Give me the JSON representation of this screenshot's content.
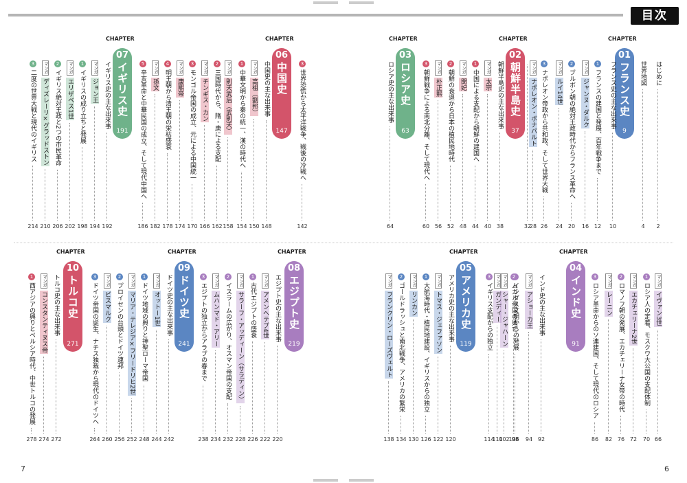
{
  "header": {
    "title": "目次"
  },
  "pages": {
    "left": "7",
    "right": "6"
  },
  "chapter_label": "CHAPTER",
  "chapters": [
    {
      "id": "01",
      "title": "フランス史",
      "page": "9",
      "color": "#5b86c2",
      "items": [
        {
          "kind": "plain",
          "text": "はじめに",
          "page": "2"
        },
        {
          "kind": "plain",
          "text": "世界地図",
          "page": "4"
        },
        {
          "kind": "plain",
          "text": "フランス史の主な出来事",
          "page": "10"
        },
        {
          "kind": "sec",
          "n": "1",
          "text": "フランスの建国と発展、百年戦争まで",
          "page": "12"
        },
        {
          "kind": "manga",
          "tag": "マンガ",
          "text": "ジャンヌ・ダルク",
          "page": "16"
        },
        {
          "kind": "sec",
          "n": "2",
          "text": "ブルボン朝の絶対王政時代からフランス革命へ",
          "page": "20"
        },
        {
          "kind": "manga",
          "tag": "マンガ",
          "text": "ルイ14世",
          "page": "24"
        },
        {
          "kind": "sec",
          "n": "3",
          "text": "ナポレオン帝政から共和政、そして世界大戦",
          "page": "26"
        },
        {
          "kind": "manga",
          "tag": "マンガ",
          "text": "ナポレオン・ボナパルト",
          "page": "28"
        },
        {
          "kind": "plain",
          "text": " ",
          "page": "32"
        }
      ]
    },
    {
      "id": "02",
      "title": "朝鮮半島史",
      "page": "37",
      "color": "#d3546a",
      "items": [
        {
          "kind": "plain",
          "text": "朝鮮半島史の主な出来事",
          "page": "38"
        },
        {
          "kind": "manga",
          "tag": "マンガ",
          "text": "太宗",
          "page": "40"
        },
        {
          "kind": "sec",
          "n": "1",
          "text": "中国による支配から朝鮮の建国へ",
          "page": "44"
        },
        {
          "kind": "manga",
          "tag": "マンガ",
          "text": "閔妃",
          "page": "48"
        },
        {
          "kind": "sec",
          "n": "2",
          "text": "朝鮮の衰退から日本の植民地時代",
          "page": "52"
        },
        {
          "kind": "manga",
          "tag": "マンガ",
          "text": "朴正熙",
          "page": "56"
        },
        {
          "kind": "sec",
          "n": "3",
          "text": "朝鮮戦争による南北分離、そして現代へ",
          "page": "60"
        }
      ]
    },
    {
      "id": "03",
      "title": "ロシア史",
      "page": "63",
      "color": "#6fb28a",
      "items": [
        {
          "kind": "plain",
          "text": "ロシア史の主な出来事",
          "page": "64"
        }
      ]
    },
    {
      "id": "04",
      "title": "インド史",
      "page": "91",
      "color": "#a87dbf",
      "items": [
        {
          "kind": "manga",
          "tag": "マンガ",
          "text": "イヴァン3世",
          "page": "66"
        },
        {
          "kind": "sec",
          "n": "1",
          "text": "ロシア人の定着、モスクワ大公国の支配体制",
          "page": "70"
        },
        {
          "kind": "manga",
          "tag": "マンガ",
          "text": "エカチェリーナ2世",
          "page": "72"
        },
        {
          "kind": "sec",
          "n": "2",
          "text": "ロマノフ朝の発展、エカチェリーナ女帝の時代",
          "page": "76"
        },
        {
          "kind": "manga",
          "tag": "マンガ",
          "text": "レーニン",
          "page": "82"
        },
        {
          "kind": "sec",
          "n": "3",
          "text": "ロシア革命からのソ連建国、そして現代のロシア",
          "page": "86"
        },
        {
          "kind": "plain",
          "text": "インド史の主な出来事",
          "page": "92"
        },
        {
          "kind": "manga",
          "tag": "マンガ",
          "text": "アショーカ王",
          "page": "94"
        },
        {
          "kind": "sec",
          "n": "1",
          "text": "インダス文明からの発展",
          "page": "98"
        },
        {
          "kind": "manga",
          "tag": "マンガ",
          "text": "シャー・ジャハーン",
          "page": "102"
        },
        {
          "kind": "sec",
          "n": "2",
          "text": "ムガル帝国の興亡",
          "page": "106"
        },
        {
          "kind": "manga",
          "tag": "マンガ",
          "text": "ガンディー",
          "page": "110"
        },
        {
          "kind": "sec",
          "n": "3",
          "text": "イギリス支配からの独立",
          "page": "114"
        }
      ]
    },
    {
      "id": "05",
      "title": "アメリカ史",
      "page": "119",
      "color": "#5b86c2",
      "items": [
        {
          "kind": "plain",
          "text": "アメリカ史の主な出来事",
          "page": "120"
        },
        {
          "kind": "manga",
          "tag": "マンガ",
          "text": "トマス・ジェファソン",
          "page": "122"
        },
        {
          "kind": "sec",
          "n": "1",
          "text": "大航海時代・植民地建設、イギリスからの独立",
          "page": "126"
        },
        {
          "kind": "manga",
          "tag": "マンガ",
          "text": "リンカン",
          "page": "130"
        },
        {
          "kind": "sec",
          "n": "2",
          "text": "ゴールドラッシュと南北戦争、アメリカの繁栄",
          "page": "134"
        },
        {
          "kind": "manga",
          "tag": "マンガ",
          "text": "フランクリン・ローズヴェルト",
          "page": "138"
        }
      ]
    },
    {
      "id": "06",
      "title": "中国史",
      "page": "147",
      "color": "#d3546a",
      "items": [
        {
          "kind": "sec",
          "n": "3",
          "text": "世界恐慌から太平洋戦争、戦後の冷戦へ",
          "page": "142"
        },
        {
          "kind": "plain",
          "text": "中国史の主な出来事",
          "page": "148"
        },
        {
          "kind": "manga",
          "tag": "マンガ",
          "text": "高祖（劉邦）",
          "page": "150"
        },
        {
          "kind": "sec",
          "n": "1",
          "text": "中華文明から秦の統一、漢の時代へ",
          "page": "154"
        },
        {
          "kind": "manga",
          "tag": "マンガ",
          "text": "則天武后（武則天）",
          "page": "158"
        },
        {
          "kind": "sec",
          "n": "2",
          "text": "三国時代から、隋・唐による支配",
          "page": "162"
        },
        {
          "kind": "manga",
          "tag": "マンガ",
          "text": "チンギス・カン",
          "page": "166"
        },
        {
          "kind": "sec",
          "n": "3",
          "text": "モンゴル帝国の成立、元による中国統一",
          "page": "170"
        },
        {
          "kind": "manga",
          "tag": "マンガ",
          "text": "康熙帝",
          "page": "174"
        },
        {
          "kind": "sec",
          "n": "4",
          "text": "明王朝から清王朝の栄枯盛衰",
          "page": "178"
        },
        {
          "kind": "manga",
          "tag": "マンガ",
          "text": "孫文",
          "page": "182"
        },
        {
          "kind": "sec",
          "n": "5",
          "text": "辛亥革命と中華民国の成立、そして現代中国へ",
          "page": "186"
        }
      ]
    },
    {
      "id": "07",
      "title": "イギリス史",
      "page": "191",
      "color": "#6fb28a",
      "items": [
        {
          "kind": "plain",
          "text": "イギリス史の主な出来事",
          "page": "192"
        },
        {
          "kind": "manga",
          "tag": "マンガ",
          "text": "ジョン王",
          "page": "194"
        },
        {
          "kind": "sec",
          "n": "1",
          "text": "イギリスの成り立ちと発展",
          "page": "198"
        },
        {
          "kind": "manga",
          "tag": "マンガ",
          "text": "エリザベス1世",
          "page": "202"
        },
        {
          "kind": "sec",
          "n": "2",
          "text": "イギリス絶対王政と2つの市民革命",
          "page": "206"
        },
        {
          "kind": "manga",
          "tag": "マンガ",
          "text": "ディズレーリ×グラッドストン",
          "page": "210"
        },
        {
          "kind": "sec",
          "n": "3",
          "text": "二度の世界大戦と現代のイギリス",
          "page": "214"
        }
      ]
    },
    {
      "id": "08",
      "title": "エジプト史",
      "page": "219",
      "color": "#a87dbf",
      "items": [
        {
          "kind": "plain",
          "text": "エジプト史の主な出来事",
          "page": "220"
        },
        {
          "kind": "manga",
          "tag": "マンガ",
          "text": "アメンヘテプ4世",
          "page": "222"
        },
        {
          "kind": "sec",
          "n": "1",
          "text": "古代エジプトの盛衰",
          "page": "226"
        },
        {
          "kind": "manga",
          "tag": "マンガ",
          "text": "サラーフ・アッディーン（サラディン）",
          "page": "228"
        },
        {
          "kind": "sec",
          "n": "2",
          "text": "イスラームの広がり、オスマン帝国の支配",
          "page": "232"
        },
        {
          "kind": "manga",
          "tag": "マンガ",
          "text": "ムハンマド・アリー",
          "page": "234"
        },
        {
          "kind": "sec",
          "n": "3",
          "text": "エジプトの独立からアラブの春まで",
          "page": "238"
        }
      ]
    },
    {
      "id": "09",
      "title": "ドイツ史",
      "page": "241",
      "color": "#5b86c2",
      "items": [
        {
          "kind": "plain",
          "text": "ドイツ史の主な出来事",
          "page": "242"
        },
        {
          "kind": "manga",
          "tag": "マンガ",
          "text": "オットー1世",
          "page": "244"
        },
        {
          "kind": "sec",
          "n": "1",
          "text": "ドイツ地域の興りと神聖ローマ帝国",
          "page": "248"
        },
        {
          "kind": "manga",
          "tag": "マンガ",
          "text": "マリア・テレジア×フリードリヒ2世",
          "page": "252"
        },
        {
          "kind": "sec",
          "n": "2",
          "text": "プロイセンの台頭とドイツ連邦",
          "page": "256"
        },
        {
          "kind": "manga",
          "tag": "マンガ",
          "text": "ビスマルク",
          "page": "260"
        },
        {
          "kind": "sec",
          "n": "3",
          "text": "ドイツ帝国の誕生、ナチス独裁から現代のドイツへ",
          "page": "264"
        }
      ]
    },
    {
      "id": "10",
      "title": "トルコ史",
      "page": "271",
      "color": "#d3546a",
      "items": [
        {
          "kind": "plain",
          "text": "トルコ史の主な出来事",
          "page": "272"
        },
        {
          "kind": "manga",
          "tag": "マンガ",
          "text": "コンスタンティヌス帝",
          "page": "274"
        },
        {
          "kind": "sec",
          "n": "1",
          "text": "西アジアの興りとペルシア時代、中世トルコの発展",
          "page": "278"
        }
      ]
    }
  ]
}
